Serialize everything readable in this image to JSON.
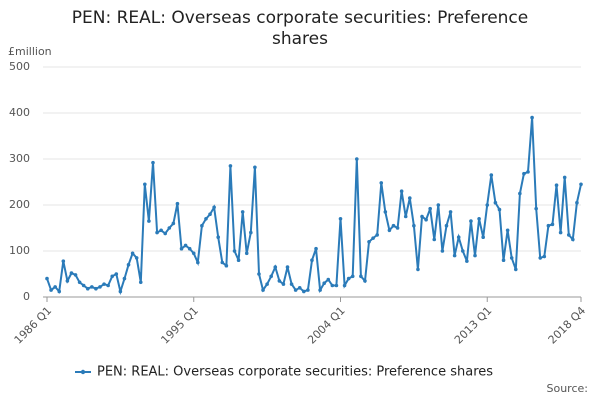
{
  "chart_data": {
    "type": "line",
    "title": "PEN: REAL: Overseas corporate securities: Preference shares",
    "y_label": "£million",
    "source": "Source:",
    "categories": [
      "1986 Q1",
      null,
      null,
      null,
      null,
      null,
      null,
      null,
      null,
      null,
      null,
      null,
      null,
      null,
      null,
      null,
      null,
      null,
      null,
      null,
      null,
      null,
      null,
      null,
      null,
      null,
      null,
      null,
      null,
      null,
      null,
      null,
      null,
      null,
      null,
      null,
      "1995 Q1",
      null,
      null,
      null,
      null,
      null,
      null,
      null,
      null,
      null,
      null,
      null,
      null,
      null,
      null,
      null,
      null,
      null,
      null,
      null,
      null,
      null,
      null,
      null,
      null,
      null,
      null,
      null,
      null,
      null,
      null,
      null,
      null,
      null,
      null,
      null,
      "2004 Q1",
      null,
      null,
      null,
      null,
      null,
      null,
      null,
      null,
      null,
      null,
      null,
      null,
      null,
      null,
      null,
      null,
      null,
      null,
      null,
      null,
      null,
      null,
      null,
      null,
      null,
      null,
      null,
      null,
      null,
      null,
      null,
      null,
      null,
      null,
      null,
      "2013 Q1",
      null,
      null,
      null,
      null,
      null,
      null,
      null,
      null,
      null,
      null,
      null,
      null,
      null,
      null,
      null,
      null,
      null,
      null,
      null,
      null,
      null,
      null,
      "2018 Q4"
    ],
    "series": [
      {
        "name": "PEN: REAL: Overseas corporate securities: Preference shares",
        "color": "#2b7bb9",
        "values": [
          40,
          15,
          22,
          12,
          78,
          35,
          52,
          48,
          32,
          25,
          18,
          22,
          18,
          22,
          28,
          25,
          45,
          50,
          12,
          40,
          70,
          95,
          85,
          32,
          245,
          165,
          292,
          140,
          145,
          138,
          150,
          160,
          203,
          105,
          112,
          105,
          95,
          75,
          155,
          170,
          180,
          195,
          130,
          75,
          68,
          285,
          100,
          80,
          185,
          95,
          140,
          282,
          50,
          15,
          28,
          45,
          65,
          35,
          28,
          65,
          28,
          15,
          20,
          12,
          15,
          80,
          105,
          15,
          30,
          38,
          25,
          25,
          170,
          25,
          40,
          45,
          300,
          45,
          35,
          120,
          128,
          135,
          248,
          185,
          145,
          155,
          150,
          230,
          175,
          215,
          155,
          60,
          175,
          168,
          192,
          125,
          200,
          100,
          155,
          185,
          90,
          130,
          100,
          78,
          165,
          90,
          170,
          130,
          200,
          265,
          205,
          190,
          80,
          145,
          85,
          60,
          225,
          268,
          272,
          390,
          192,
          85,
          88,
          155,
          158,
          243,
          140,
          260,
          135,
          125,
          205,
          245
        ]
      }
    ],
    "ylim": [
      0,
      500
    ],
    "yticks": [
      0,
      100,
      200,
      300,
      400,
      500
    ]
  }
}
